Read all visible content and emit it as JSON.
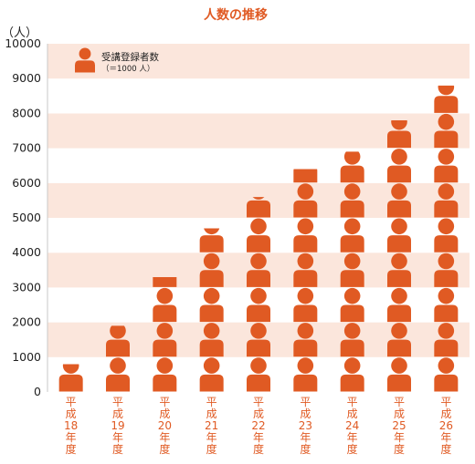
{
  "chart_data": {
    "type": "bar",
    "title": "人数の推移",
    "unit_label": "（人）",
    "ylim": [
      0,
      10000
    ],
    "yticks": [
      0,
      1000,
      2000,
      3000,
      4000,
      5000,
      6000,
      7000,
      8000,
      9000,
      10000
    ],
    "categories": [
      [
        "平",
        "成",
        "18",
        "年",
        "度"
      ],
      [
        "平",
        "成",
        "19",
        "年",
        "度"
      ],
      [
        "平",
        "成",
        "20",
        "年",
        "度"
      ],
      [
        "平",
        "成",
        "21",
        "年",
        "度"
      ],
      [
        "平",
        "成",
        "22",
        "年",
        "度"
      ],
      [
        "平",
        "成",
        "23",
        "年",
        "度"
      ],
      [
        "平",
        "成",
        "24",
        "年",
        "度"
      ],
      [
        "平",
        "成",
        "25",
        "年",
        "度"
      ],
      [
        "平",
        "成",
        "26",
        "年",
        "度"
      ]
    ],
    "series": [
      {
        "name": "受講登録者数",
        "values": [
          800,
          1900,
          3300,
          4700,
          5600,
          6400,
          6900,
          7800,
          8800
        ]
      }
    ],
    "legend": {
      "label": "受講登録者数",
      "note": "（＝1000 人）",
      "placement": "top-left"
    },
    "icon_unit": 1000,
    "icon": "person-icon",
    "colors": {
      "icon": "#e05a23",
      "title": "#e05a23",
      "band": "#fbe6dc",
      "text": "#222222",
      "axis_label": "#e05a23"
    },
    "grid": "alternating-bands"
  }
}
